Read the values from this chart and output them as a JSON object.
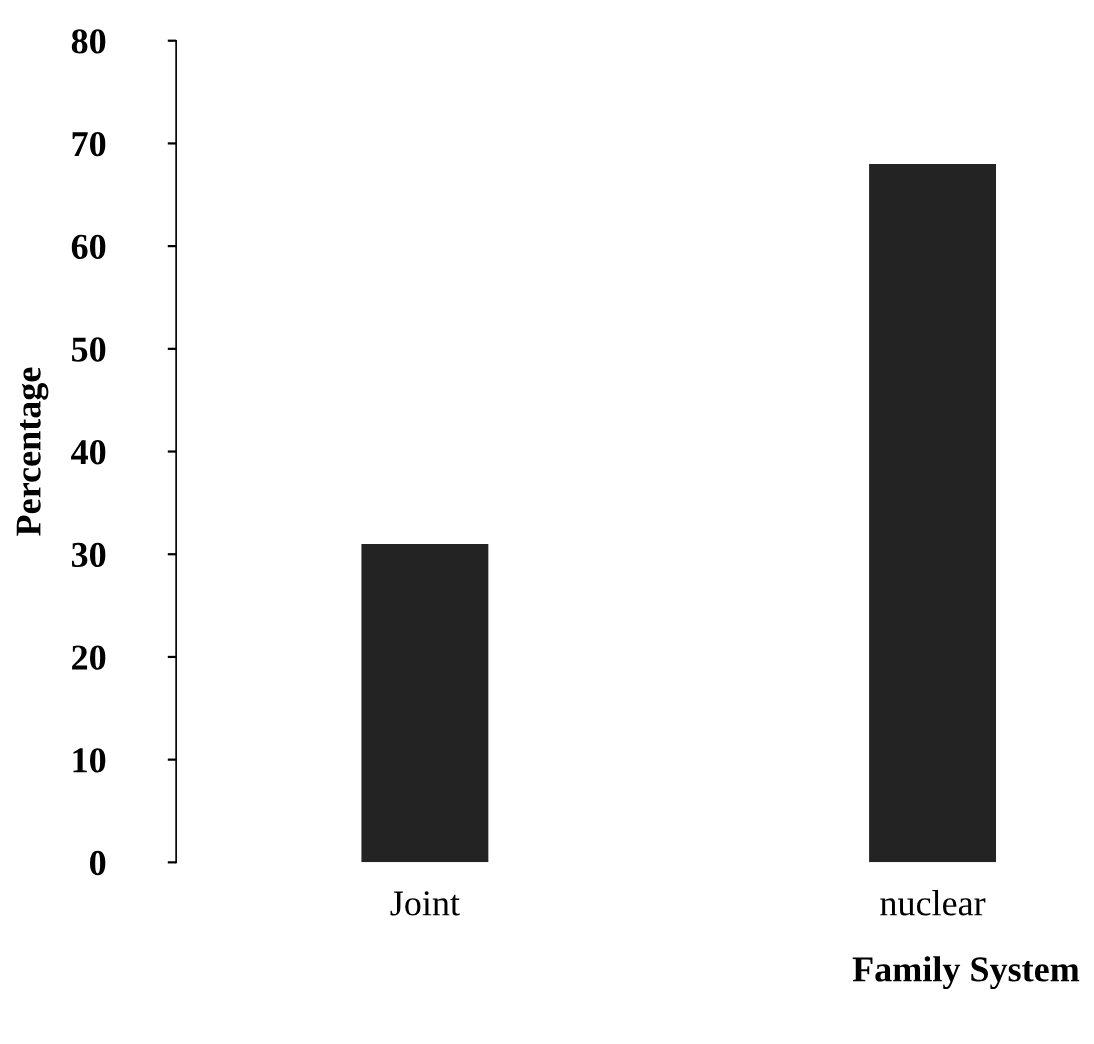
{
  "chart_data": {
    "type": "bar",
    "categories": [
      "Joint",
      "nuclear"
    ],
    "values": [
      31,
      68
    ],
    "color": "#232323",
    "xlabel": "Family System",
    "ylabel": "Percentage",
    "ylim": [
      0,
      80
    ],
    "yticks": [
      0,
      10,
      20,
      30,
      40,
      50,
      60,
      70,
      80
    ],
    "grid": false,
    "legend": false
  }
}
